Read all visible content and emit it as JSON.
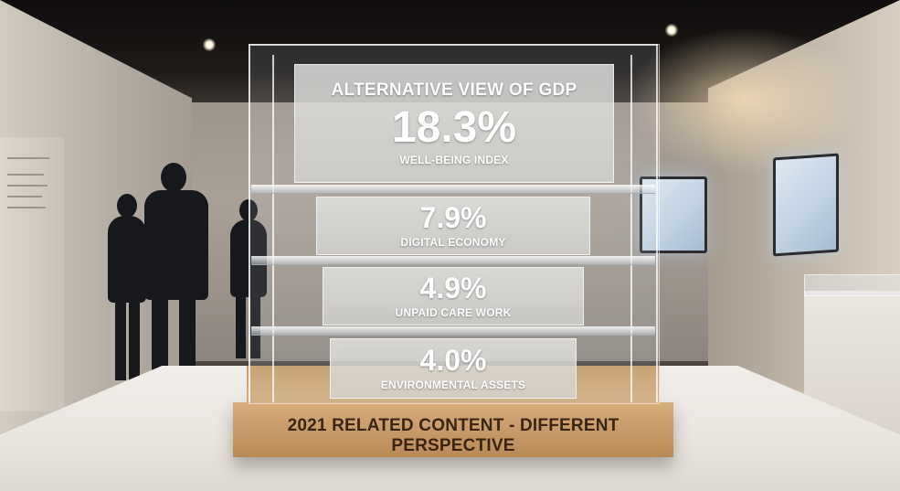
{
  "exhibit": {
    "title": "ALTERNATIVE VIEW OF GDP",
    "base_label": "2021 RELATED CONTENT - DIFFERENT PERSPECTIVE",
    "tiers": [
      {
        "value": "18.3%",
        "label": "WELL-BEING INDEX"
      },
      {
        "value": "7.9%",
        "label": "DIGITAL ECONOMY"
      },
      {
        "value": "4.9%",
        "label": "UNPAID CARE WORK"
      },
      {
        "value": "4.0%",
        "label": "ENVIRONMENTAL ASSETS"
      }
    ]
  },
  "colors": {
    "wood": "#c99d6b",
    "wood_text": "#3b2410",
    "panel_text": "#ffffff",
    "gallery_wall": "#a9a198"
  }
}
